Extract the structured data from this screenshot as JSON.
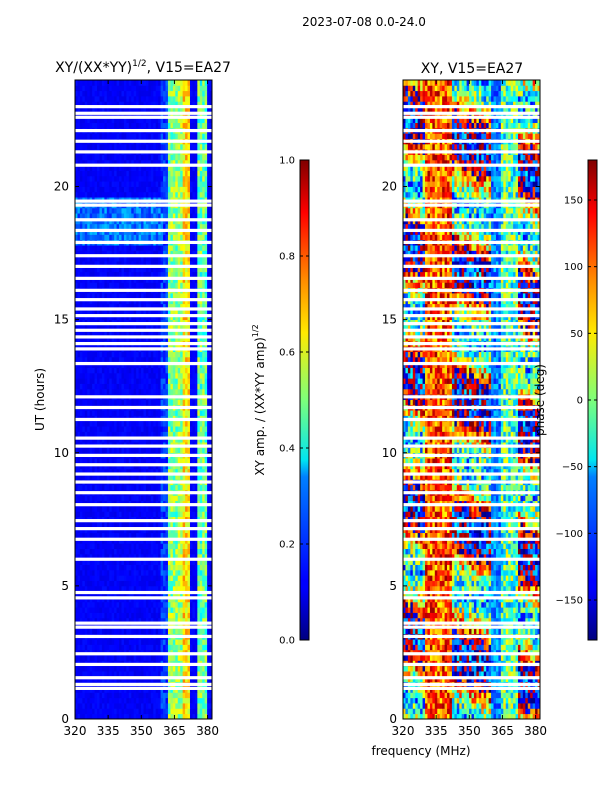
{
  "suptitle": "2023-07-08 0.0-24.0",
  "chart_data": [
    {
      "type": "heatmap",
      "title_main": "XY/(XX*YY)",
      "title_sup": "1/2",
      "title_tail": ", V15=EA27",
      "xlabel": "frequency (MHz)",
      "ylabel": "UT (hours)",
      "xlim": [
        320,
        382
      ],
      "ylim": [
        0,
        24
      ],
      "xticks": [
        "320",
        "335",
        "350",
        "365",
        "380"
      ],
      "yticks": [
        "0",
        "5",
        "10",
        "15",
        "20"
      ],
      "colorbar": {
        "label_main": "XY amp. / (XX*YY amp)",
        "label_sup": "1/2",
        "range": [
          0.0,
          1.0
        ],
        "ticks": [
          "0.0",
          "0.2",
          "0.4",
          "0.6",
          "0.8",
          "1.0"
        ],
        "colormap": "jet"
      },
      "blank_times_hours": [
        1.15,
        1.3,
        1.55,
        2.05,
        2.45,
        3.1,
        3.45,
        3.6,
        4.55,
        4.75,
        6.0,
        6.75,
        7.15,
        7.45,
        8.05,
        8.5,
        8.9,
        9.2,
        9.55,
        9.9,
        10.25,
        10.55,
        11.25,
        11.7,
        12.1,
        13.35,
        13.9,
        14.1,
        14.35,
        14.6,
        14.85,
        15.15,
        15.4,
        15.75,
        16.1,
        16.55,
        17.0,
        17.4,
        17.9,
        18.35,
        18.75,
        19.3,
        19.45,
        20.8,
        21.3,
        21.7,
        22.1,
        22.6,
        22.75,
        23.0
      ]
    },
    {
      "type": "heatmap",
      "title": "XY, V15=EA27",
      "xlim": [
        320,
        382
      ],
      "ylim": [
        0,
        24
      ],
      "xticks": [
        "320",
        "335",
        "350",
        "365",
        "380"
      ],
      "yticks": [
        "0",
        "5",
        "10",
        "15",
        "20"
      ],
      "colorbar": {
        "label": "phase (deg)",
        "range": [
          -180,
          180
        ],
        "ticks": [
          "−150",
          "−100",
          "−50",
          "0",
          "50",
          "100",
          "150"
        ],
        "tick_values": [
          -150,
          -100,
          -50,
          0,
          50,
          100,
          150
        ],
        "colormap": "jet"
      },
      "blank_times_hours": [
        1.15,
        1.3,
        1.55,
        2.05,
        2.45,
        3.1,
        3.45,
        3.6,
        4.55,
        4.75,
        6.0,
        6.75,
        7.15,
        7.45,
        8.05,
        8.5,
        8.9,
        9.2,
        9.55,
        9.9,
        10.25,
        10.55,
        11.25,
        11.7,
        12.1,
        13.35,
        13.9,
        14.1,
        14.35,
        14.6,
        14.85,
        15.15,
        15.4,
        15.75,
        16.1,
        16.55,
        17.0,
        17.4,
        17.9,
        18.35,
        18.75,
        19.3,
        19.45,
        20.8,
        21.3,
        21.7,
        22.1,
        22.6,
        22.75,
        23.0
      ]
    }
  ]
}
